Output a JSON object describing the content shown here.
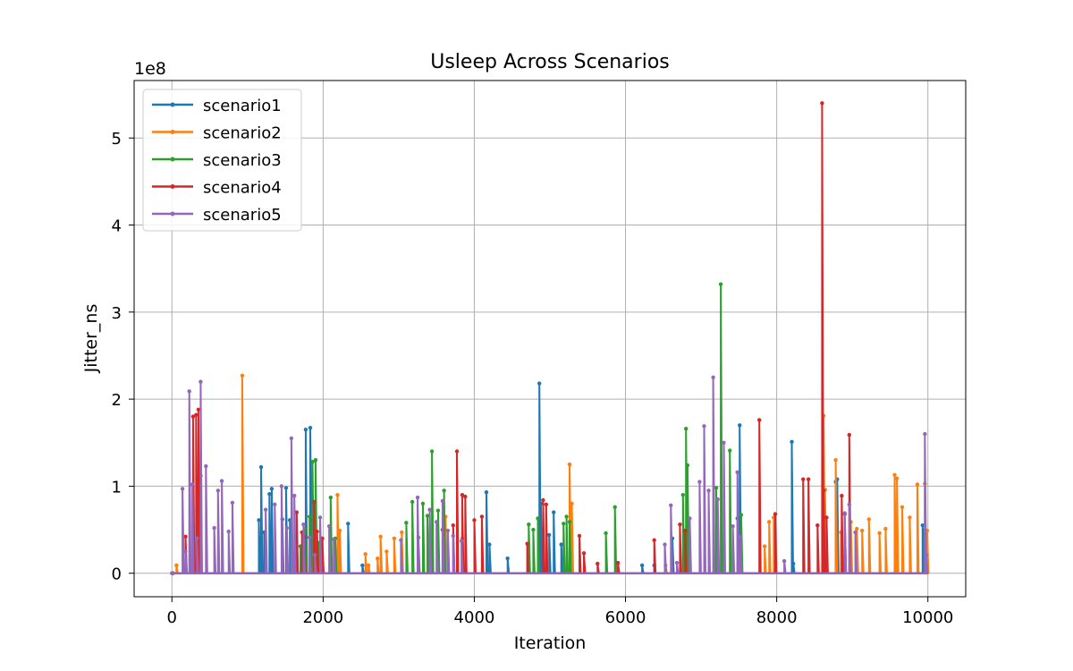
{
  "chart_data": {
    "type": "line",
    "title": "Usleep Across Scenarios",
    "xlabel": "Iteration",
    "ylabel": "Jitter_ns",
    "y_scale_label": "1e8",
    "xlim": [
      -500,
      10500
    ],
    "ylim": [
      -27000000,
      566000000
    ],
    "x_ticks": [
      0,
      2000,
      4000,
      6000,
      8000,
      10000
    ],
    "x_tick_labels": [
      "0",
      "2000",
      "4000",
      "6000",
      "8000",
      "10000"
    ],
    "y_ticks": [
      0,
      100000000,
      200000000,
      300000000,
      400000000,
      500000000
    ],
    "y_tick_labels": [
      "0",
      "1",
      "2",
      "3",
      "4",
      "5"
    ],
    "grid": true,
    "legend_position": "upper-left",
    "series": [
      {
        "name": "scenario1",
        "color": "#1f77b4",
        "x": [
          10,
          1150,
          1180,
          1220,
          1290,
          1320,
          1460,
          1510,
          1560,
          1770,
          1830,
          1850,
          2200,
          2330,
          2520,
          4160,
          4200,
          4440,
          4860,
          4880,
          4990,
          5050,
          5150,
          6220,
          6380,
          6620,
          7480,
          7510,
          8200,
          8220,
          8780,
          8800,
          9930,
          9950
        ],
        "y": [
          0,
          61000000,
          122000000,
          47000000,
          91000000,
          97000000,
          62000000,
          98000000,
          61000000,
          165000000,
          167000000,
          45000000,
          40000000,
          57000000,
          9000000,
          93000000,
          33000000,
          17000000,
          218000000,
          80000000,
          44000000,
          70000000,
          33000000,
          9000000,
          9000000,
          40000000,
          63000000,
          170000000,
          151000000,
          11000000,
          105000000,
          108000000,
          55000000,
          49000000
        ]
      },
      {
        "name": "scenario2",
        "color": "#ff7f0e",
        "x": [
          10,
          60,
          930,
          2190,
          2220,
          2560,
          2600,
          2720,
          2760,
          2840,
          2940,
          3040,
          3620,
          3840,
          5260,
          5290,
          6530,
          7840,
          7900,
          7960,
          8620,
          8640,
          8780,
          8850,
          8980,
          9060,
          9130,
          9220,
          9360,
          9440,
          9560,
          9590,
          9660,
          9760,
          9860,
          9960,
          9990
        ],
        "y": [
          0,
          9000000,
          227000000,
          90000000,
          49000000,
          22000000,
          9000000,
          17000000,
          42000000,
          25000000,
          40000000,
          47000000,
          65000000,
          40000000,
          125000000,
          80000000,
          9000000,
          31000000,
          59000000,
          64000000,
          181000000,
          96000000,
          130000000,
          47000000,
          59000000,
          51000000,
          49000000,
          62000000,
          46000000,
          51000000,
          113000000,
          109000000,
          76000000,
          64000000,
          102000000,
          103000000,
          49000000
        ]
      },
      {
        "name": "scenario3",
        "color": "#2ca02c",
        "x": [
          10,
          1700,
          1760,
          1820,
          1860,
          1900,
          1940,
          2100,
          2160,
          3100,
          3180,
          3260,
          3320,
          3380,
          3440,
          3520,
          3600,
          4720,
          4780,
          4840,
          5180,
          5220,
          5260,
          5740,
          5860,
          6760,
          6800,
          6820,
          7200,
          7260,
          7380,
          7530
        ],
        "y": [
          0,
          31000000,
          51000000,
          65000000,
          128000000,
          130000000,
          35000000,
          87000000,
          40000000,
          58000000,
          82000000,
          41000000,
          80000000,
          66000000,
          140000000,
          72000000,
          95000000,
          56000000,
          50000000,
          63000000,
          57000000,
          65000000,
          59000000,
          46000000,
          76000000,
          90000000,
          166000000,
          124000000,
          98000000,
          332000000,
          141000000,
          67000000
        ]
      },
      {
        "name": "scenario4",
        "color": "#d62728",
        "x": [
          10,
          180,
          280,
          320,
          350,
          380,
          1650,
          1720,
          1750,
          1880,
          1920,
          1990,
          3580,
          3720,
          3770,
          3840,
          3880,
          4000,
          4100,
          4700,
          4910,
          4950,
          5390,
          5450,
          5630,
          5900,
          6380,
          6720,
          6790,
          7770,
          7980,
          8350,
          8420,
          8540,
          8600,
          8620,
          8660,
          8860,
          8900,
          8960
        ],
        "y": [
          0,
          42000000,
          180000000,
          182000000,
          188000000,
          112000000,
          70000000,
          47000000,
          42000000,
          82000000,
          48000000,
          40000000,
          50000000,
          55000000,
          140000000,
          90000000,
          88000000,
          61000000,
          65000000,
          34000000,
          84000000,
          79000000,
          43000000,
          23000000,
          11000000,
          12000000,
          38000000,
          56000000,
          49000000,
          176000000,
          68000000,
          108000000,
          108000000,
          55000000,
          540000000,
          95000000,
          64000000,
          89000000,
          68000000,
          159000000
        ]
      },
      {
        "name": "scenario5",
        "color": "#9467bd",
        "x": [
          0,
          140,
          180,
          230,
          270,
          330,
          380,
          450,
          560,
          610,
          660,
          750,
          800,
          1240,
          1360,
          1450,
          1520,
          1580,
          1620,
          1740,
          1820,
          1890,
          1960,
          2080,
          2140,
          3030,
          3250,
          3410,
          3500,
          3580,
          3650,
          3720,
          3830,
          6520,
          6600,
          6680,
          6850,
          6980,
          7040,
          7100,
          7160,
          7220,
          7300,
          7420,
          7480,
          7520,
          8100,
          8900,
          8960,
          9040,
          9960,
          9980
        ],
        "y": [
          0,
          97000000,
          25000000,
          209000000,
          102000000,
          40000000,
          220000000,
          123000000,
          52000000,
          95000000,
          106000000,
          48000000,
          81000000,
          73000000,
          79000000,
          100000000,
          52000000,
          155000000,
          89000000,
          56000000,
          41000000,
          21000000,
          64000000,
          54000000,
          39000000,
          38000000,
          87000000,
          73000000,
          59000000,
          83000000,
          49000000,
          43000000,
          37000000,
          33000000,
          78000000,
          12000000,
          63000000,
          105000000,
          169000000,
          95000000,
          225000000,
          85000000,
          150000000,
          54000000,
          116000000,
          42000000,
          14000000,
          69000000,
          79000000,
          47000000,
          160000000,
          21000000
        ]
      }
    ]
  }
}
